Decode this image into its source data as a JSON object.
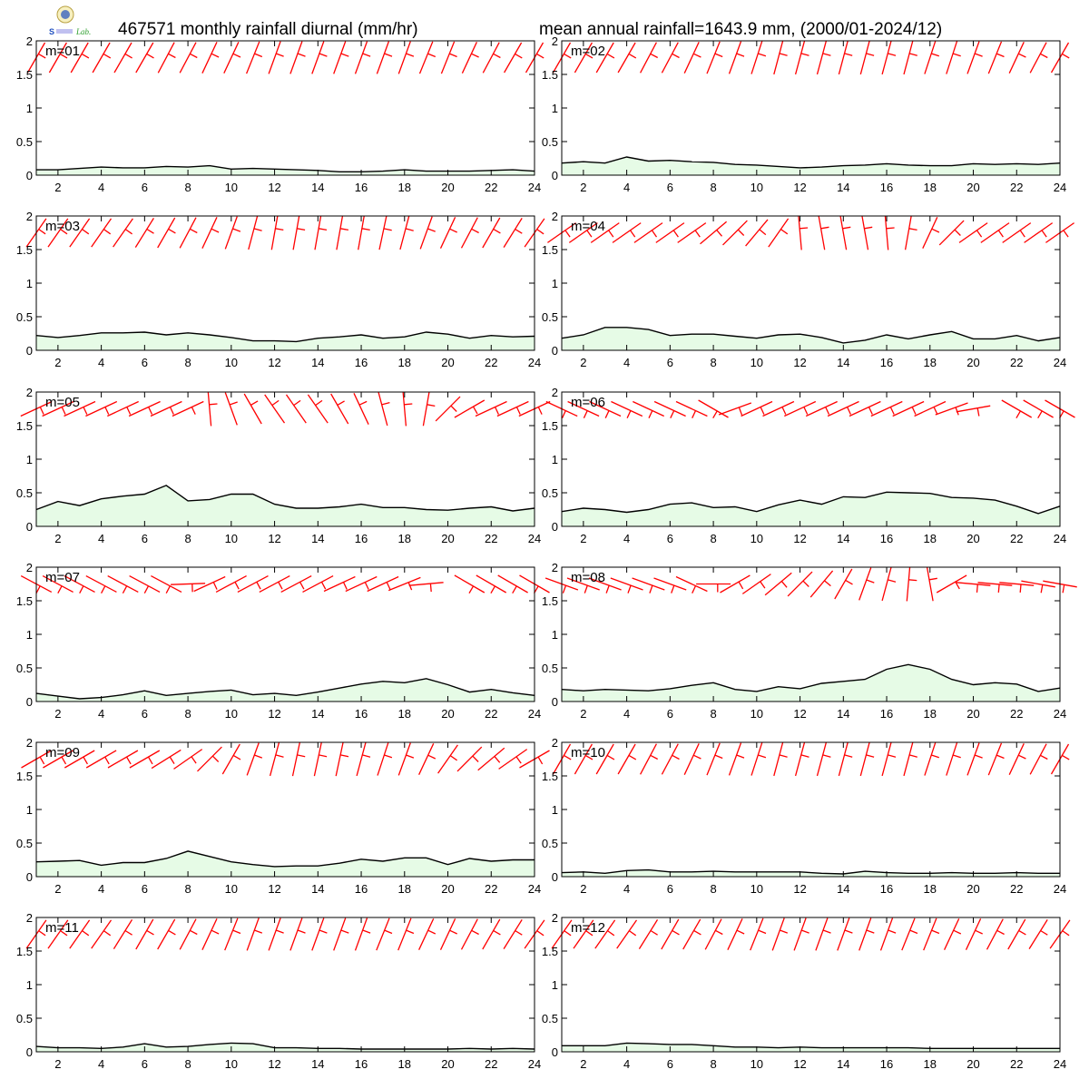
{
  "header": {
    "title_left": "467571 monthly rainfall diurnal (mm/hr)",
    "title_right": "mean annual rainfall=1643.9 mm, (2000/01-2024/12)"
  },
  "logo": {
    "text": "Lab."
  },
  "colors": {
    "fill": "#e6fbe6",
    "line": "#000000",
    "wind": "#ff0000",
    "frame": "#000000"
  },
  "chart_data": {
    "type": "area",
    "x": [
      1,
      2,
      3,
      4,
      5,
      6,
      7,
      8,
      9,
      10,
      11,
      12,
      13,
      14,
      15,
      16,
      17,
      18,
      19,
      20,
      21,
      22,
      23,
      24
    ],
    "xlim": [
      1,
      24
    ],
    "ylim": [
      0,
      2
    ],
    "xticks": [
      2,
      4,
      6,
      8,
      10,
      12,
      14,
      16,
      18,
      20,
      22,
      24
    ],
    "yticks": [
      0,
      0.5,
      1,
      1.5,
      2
    ],
    "ytick_labels": [
      "0",
      "0.5",
      "1",
      "1.5",
      "2"
    ],
    "panels": [
      {
        "label": "m=01",
        "values": [
          0.08,
          0.08,
          0.1,
          0.12,
          0.11,
          0.11,
          0.13,
          0.12,
          0.14,
          0.09,
          0.1,
          0.09,
          0.08,
          0.07,
          0.05,
          0.05,
          0.06,
          0.08,
          0.06,
          0.06,
          0.06,
          0.07,
          0.08,
          0.06
        ],
        "wind_dir": [
          30,
          30,
          30,
          30,
          30,
          30,
          28,
          28,
          25,
          25,
          22,
          20,
          20,
          20,
          20,
          20,
          20,
          20,
          22,
          22,
          25,
          28,
          30,
          30
        ]
      },
      {
        "label": "m=02",
        "values": [
          0.18,
          0.2,
          0.18,
          0.27,
          0.21,
          0.22,
          0.2,
          0.19,
          0.16,
          0.15,
          0.13,
          0.11,
          0.12,
          0.14,
          0.15,
          0.17,
          0.15,
          0.14,
          0.14,
          0.17,
          0.16,
          0.17,
          0.16,
          0.18
        ],
        "wind_dir": [
          30,
          30,
          30,
          30,
          28,
          28,
          25,
          22,
          20,
          18,
          15,
          15,
          15,
          15,
          15,
          15,
          15,
          18,
          18,
          20,
          22,
          25,
          28,
          30
        ]
      },
      {
        "label": "m=03",
        "values": [
          0.22,
          0.19,
          0.22,
          0.26,
          0.26,
          0.27,
          0.23,
          0.26,
          0.23,
          0.19,
          0.14,
          0.14,
          0.13,
          0.18,
          0.2,
          0.23,
          0.18,
          0.2,
          0.27,
          0.24,
          0.18,
          0.22,
          0.2,
          0.21
        ],
        "wind_dir": [
          35,
          35,
          35,
          35,
          35,
          32,
          30,
          28,
          25,
          20,
          15,
          10,
          10,
          10,
          10,
          10,
          12,
          15,
          20,
          25,
          28,
          30,
          32,
          35
        ]
      },
      {
        "label": "m=04",
        "values": [
          0.18,
          0.23,
          0.34,
          0.34,
          0.31,
          0.22,
          0.24,
          0.24,
          0.21,
          0.18,
          0.23,
          0.24,
          0.19,
          0.11,
          0.15,
          0.23,
          0.17,
          0.23,
          0.28,
          0.17,
          0.17,
          0.22,
          0.14,
          0.19
        ],
        "wind_dir": [
          55,
          55,
          55,
          55,
          55,
          55,
          55,
          50,
          45,
          40,
          35,
          -5,
          -10,
          -10,
          -10,
          -5,
          10,
          25,
          45,
          55,
          55,
          55,
          55,
          55
        ]
      },
      {
        "label": "m=05",
        "values": [
          0.25,
          0.37,
          0.31,
          0.41,
          0.45,
          0.48,
          0.61,
          0.38,
          0.4,
          0.48,
          0.48,
          0.33,
          0.27,
          0.27,
          0.29,
          0.33,
          0.28,
          0.28,
          0.25,
          0.24,
          0.27,
          0.29,
          0.23,
          0.27
        ],
        "wind_dir": [
          65,
          65,
          65,
          65,
          65,
          65,
          65,
          65,
          -5,
          -20,
          -30,
          -35,
          -35,
          -35,
          -30,
          -25,
          -15,
          -5,
          10,
          45,
          60,
          65,
          65,
          65
        ]
      },
      {
        "label": "m=06",
        "values": [
          0.22,
          0.27,
          0.25,
          0.21,
          0.25,
          0.33,
          0.35,
          0.28,
          0.29,
          0.22,
          0.32,
          0.39,
          0.33,
          0.44,
          0.43,
          0.51,
          0.5,
          0.49,
          0.43,
          0.42,
          0.39,
          0.3,
          0.19,
          0.3
        ],
        "wind_dir": [
          115,
          115,
          115,
          115,
          115,
          115,
          115,
          120,
          70,
          65,
          65,
          65,
          65,
          65,
          65,
          65,
          65,
          65,
          70,
          80,
          null,
          120,
          120,
          120
        ]
      },
      {
        "label": "m=07",
        "values": [
          0.12,
          0.08,
          0.04,
          0.06,
          0.1,
          0.16,
          0.09,
          0.12,
          0.15,
          0.17,
          0.1,
          0.12,
          0.09,
          0.14,
          0.2,
          0.26,
          0.3,
          0.28,
          0.34,
          0.25,
          0.14,
          0.18,
          0.13,
          0.09
        ],
        "wind_dir": [
          118,
          118,
          118,
          118,
          118,
          118,
          118,
          88,
          65,
          62,
          62,
          62,
          62,
          62,
          65,
          65,
          65,
          68,
          85,
          null,
          120,
          120,
          120,
          120
        ]
      },
      {
        "label": "m=08",
        "values": [
          0.18,
          0.16,
          0.18,
          0.17,
          0.16,
          0.19,
          0.24,
          0.28,
          0.18,
          0.15,
          0.22,
          0.19,
          0.27,
          0.3,
          0.33,
          0.48,
          0.55,
          0.48,
          0.33,
          0.25,
          0.28,
          0.26,
          0.15,
          0.2
        ],
        "wind_dir": [
          110,
          110,
          110,
          110,
          110,
          110,
          115,
          90,
          60,
          55,
          50,
          45,
          40,
          30,
          20,
          15,
          5,
          -10,
          60,
          95,
          95,
          95,
          100,
          100
        ]
      },
      {
        "label": "m=09",
        "values": [
          0.22,
          0.23,
          0.24,
          0.17,
          0.21,
          0.21,
          0.27,
          0.38,
          0.3,
          0.22,
          0.18,
          0.15,
          0.16,
          0.16,
          0.2,
          0.26,
          0.23,
          0.28,
          0.28,
          0.18,
          0.27,
          0.23,
          0.25,
          0.25
        ],
        "wind_dir": [
          60,
          60,
          60,
          60,
          60,
          60,
          58,
          55,
          45,
          30,
          20,
          15,
          12,
          12,
          12,
          15,
          18,
          20,
          25,
          35,
          45,
          50,
          55,
          60
        ]
      },
      {
        "label": "m=10",
        "values": [
          0.06,
          0.07,
          0.05,
          0.09,
          0.1,
          0.07,
          0.07,
          0.08,
          0.07,
          0.07,
          0.07,
          0.07,
          0.05,
          0.04,
          0.08,
          0.06,
          0.05,
          0.05,
          0.06,
          0.05,
          0.05,
          0.06,
          0.05,
          0.05
        ],
        "wind_dir": [
          30,
          30,
          30,
          30,
          28,
          28,
          25,
          22,
          20,
          18,
          15,
          15,
          15,
          15,
          15,
          15,
          15,
          18,
          18,
          20,
          22,
          25,
          28,
          30
        ]
      },
      {
        "label": "m=11",
        "values": [
          0.08,
          0.06,
          0.06,
          0.05,
          0.07,
          0.12,
          0.07,
          0.08,
          0.11,
          0.13,
          0.12,
          0.06,
          0.06,
          0.05,
          0.05,
          0.04,
          0.04,
          0.04,
          0.04,
          0.04,
          0.05,
          0.04,
          0.05,
          0.04
        ],
        "wind_dir": [
          35,
          35,
          35,
          35,
          32,
          30,
          30,
          28,
          25,
          22,
          20,
          20,
          20,
          20,
          20,
          20,
          22,
          22,
          25,
          25,
          28,
          30,
          32,
          35
        ]
      },
      {
        "label": "m=12",
        "values": [
          0.09,
          0.09,
          0.09,
          0.13,
          0.12,
          0.11,
          0.11,
          0.09,
          0.07,
          0.07,
          0.06,
          0.07,
          0.06,
          0.06,
          0.06,
          0.06,
          0.06,
          0.05,
          0.05,
          0.05,
          0.05,
          0.05,
          0.05,
          0.05
        ],
        "wind_dir": [
          35,
          35,
          35,
          35,
          32,
          30,
          30,
          28,
          25,
          22,
          20,
          20,
          20,
          20,
          20,
          20,
          22,
          22,
          25,
          25,
          28,
          30,
          32,
          35
        ]
      }
    ]
  }
}
